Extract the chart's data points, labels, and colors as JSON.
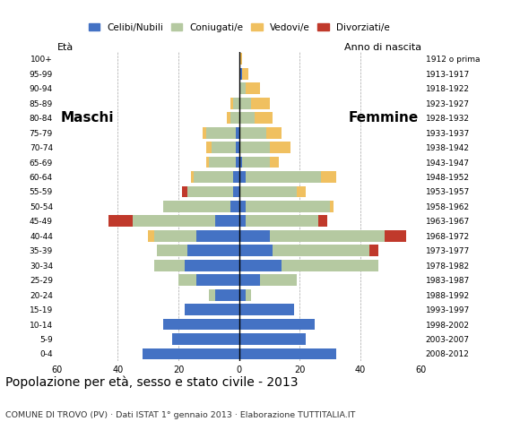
{
  "age_groups": [
    "0-4",
    "5-9",
    "10-14",
    "15-19",
    "20-24",
    "25-29",
    "30-34",
    "35-39",
    "40-44",
    "45-49",
    "50-54",
    "55-59",
    "60-64",
    "65-69",
    "70-74",
    "75-79",
    "80-84",
    "85-89",
    "90-94",
    "95-99",
    "100+"
  ],
  "birth_years": [
    "2008-2012",
    "2003-2007",
    "1998-2002",
    "1993-1997",
    "1988-1992",
    "1983-1987",
    "1978-1982",
    "1973-1977",
    "1968-1972",
    "1963-1967",
    "1958-1962",
    "1953-1957",
    "1948-1952",
    "1943-1947",
    "1938-1942",
    "1933-1937",
    "1928-1932",
    "1923-1927",
    "1918-1922",
    "1913-1917",
    "1912 o prima"
  ],
  "males": {
    "celibi": [
      32,
      22,
      25,
      18,
      8,
      14,
      18,
      17,
      14,
      8,
      3,
      2,
      2,
      1,
      1,
      1,
      0,
      0,
      0,
      0,
      0
    ],
    "coniugati": [
      0,
      0,
      0,
      0,
      2,
      6,
      10,
      10,
      14,
      27,
      22,
      15,
      13,
      9,
      8,
      10,
      3,
      2,
      0,
      0,
      0
    ],
    "vedovi": [
      0,
      0,
      0,
      0,
      0,
      0,
      0,
      0,
      2,
      0,
      0,
      0,
      1,
      1,
      2,
      1,
      1,
      1,
      0,
      0,
      0
    ],
    "divorziati": [
      0,
      0,
      0,
      0,
      0,
      0,
      0,
      0,
      0,
      8,
      0,
      2,
      0,
      0,
      0,
      0,
      0,
      0,
      0,
      0,
      0
    ]
  },
  "females": {
    "nubili": [
      32,
      22,
      25,
      18,
      2,
      7,
      14,
      11,
      10,
      2,
      2,
      0,
      2,
      1,
      0,
      0,
      0,
      0,
      0,
      1,
      0
    ],
    "coniugate": [
      0,
      0,
      0,
      0,
      2,
      12,
      32,
      32,
      38,
      24,
      28,
      19,
      25,
      9,
      10,
      9,
      5,
      4,
      2,
      0,
      0
    ],
    "vedove": [
      0,
      0,
      0,
      0,
      0,
      0,
      0,
      0,
      0,
      0,
      1,
      3,
      5,
      3,
      7,
      5,
      6,
      6,
      5,
      2,
      1
    ],
    "divorziate": [
      0,
      0,
      0,
      0,
      0,
      0,
      0,
      3,
      7,
      3,
      0,
      0,
      0,
      0,
      0,
      0,
      0,
      0,
      0,
      0,
      0
    ]
  },
  "colors": {
    "celibi": "#4472C4",
    "coniugati": "#b5c9a1",
    "vedovi": "#f0c060",
    "divorziati": "#c0392b"
  },
  "xlim": 60,
  "title": "Popolazione per età, sesso e stato civile - 2013",
  "subtitle": "COMUNE DI TROVO (PV) · Dati ISTAT 1° gennaio 2013 · Elaborazione TUTTITALIA.IT",
  "ylabel_left": "Età",
  "ylabel_right": "Anno di nascita",
  "label_maschi": "Maschi",
  "label_femmine": "Femmine",
  "legend_labels": [
    "Celibi/Nubili",
    "Coniugati/e",
    "Vedovi/e",
    "Divorziati/e"
  ]
}
